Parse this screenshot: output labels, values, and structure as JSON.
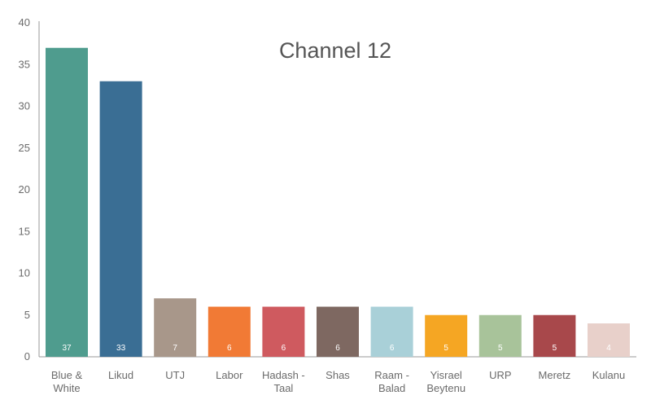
{
  "chart_data": {
    "type": "bar",
    "title": "Channel 12",
    "xlabel": "",
    "ylabel": "",
    "ylim": [
      0,
      40
    ],
    "yticks": [
      0,
      5,
      10,
      15,
      20,
      25,
      30,
      35,
      40
    ],
    "grid": false,
    "legend": "none",
    "categories": [
      [
        "Blue &",
        "White"
      ],
      [
        "Likud"
      ],
      [
        "UTJ"
      ],
      [
        "Labor"
      ],
      [
        "Hadash -",
        "Taal"
      ],
      [
        "Shas"
      ],
      [
        "Raam -",
        "Balad"
      ],
      [
        "Yisrael",
        "Beytenu"
      ],
      [
        "URP"
      ],
      [
        "Meretz"
      ],
      [
        "Kulanu"
      ]
    ],
    "values": [
      37,
      33,
      7,
      6,
      6,
      6,
      6,
      5,
      5,
      5,
      4
    ],
    "value_labels": [
      "37",
      "33",
      "7",
      "6",
      "6",
      "6",
      "6",
      "5",
      "5",
      "5",
      "4"
    ],
    "colors": [
      "#4f9c8e",
      "#3a6e94",
      "#a8978a",
      "#f17a35",
      "#cf5a5f",
      "#7e6861",
      "#a9d0d8",
      "#f5a623",
      "#a8c39a",
      "#a8484b",
      "#e8d0ca"
    ]
  }
}
